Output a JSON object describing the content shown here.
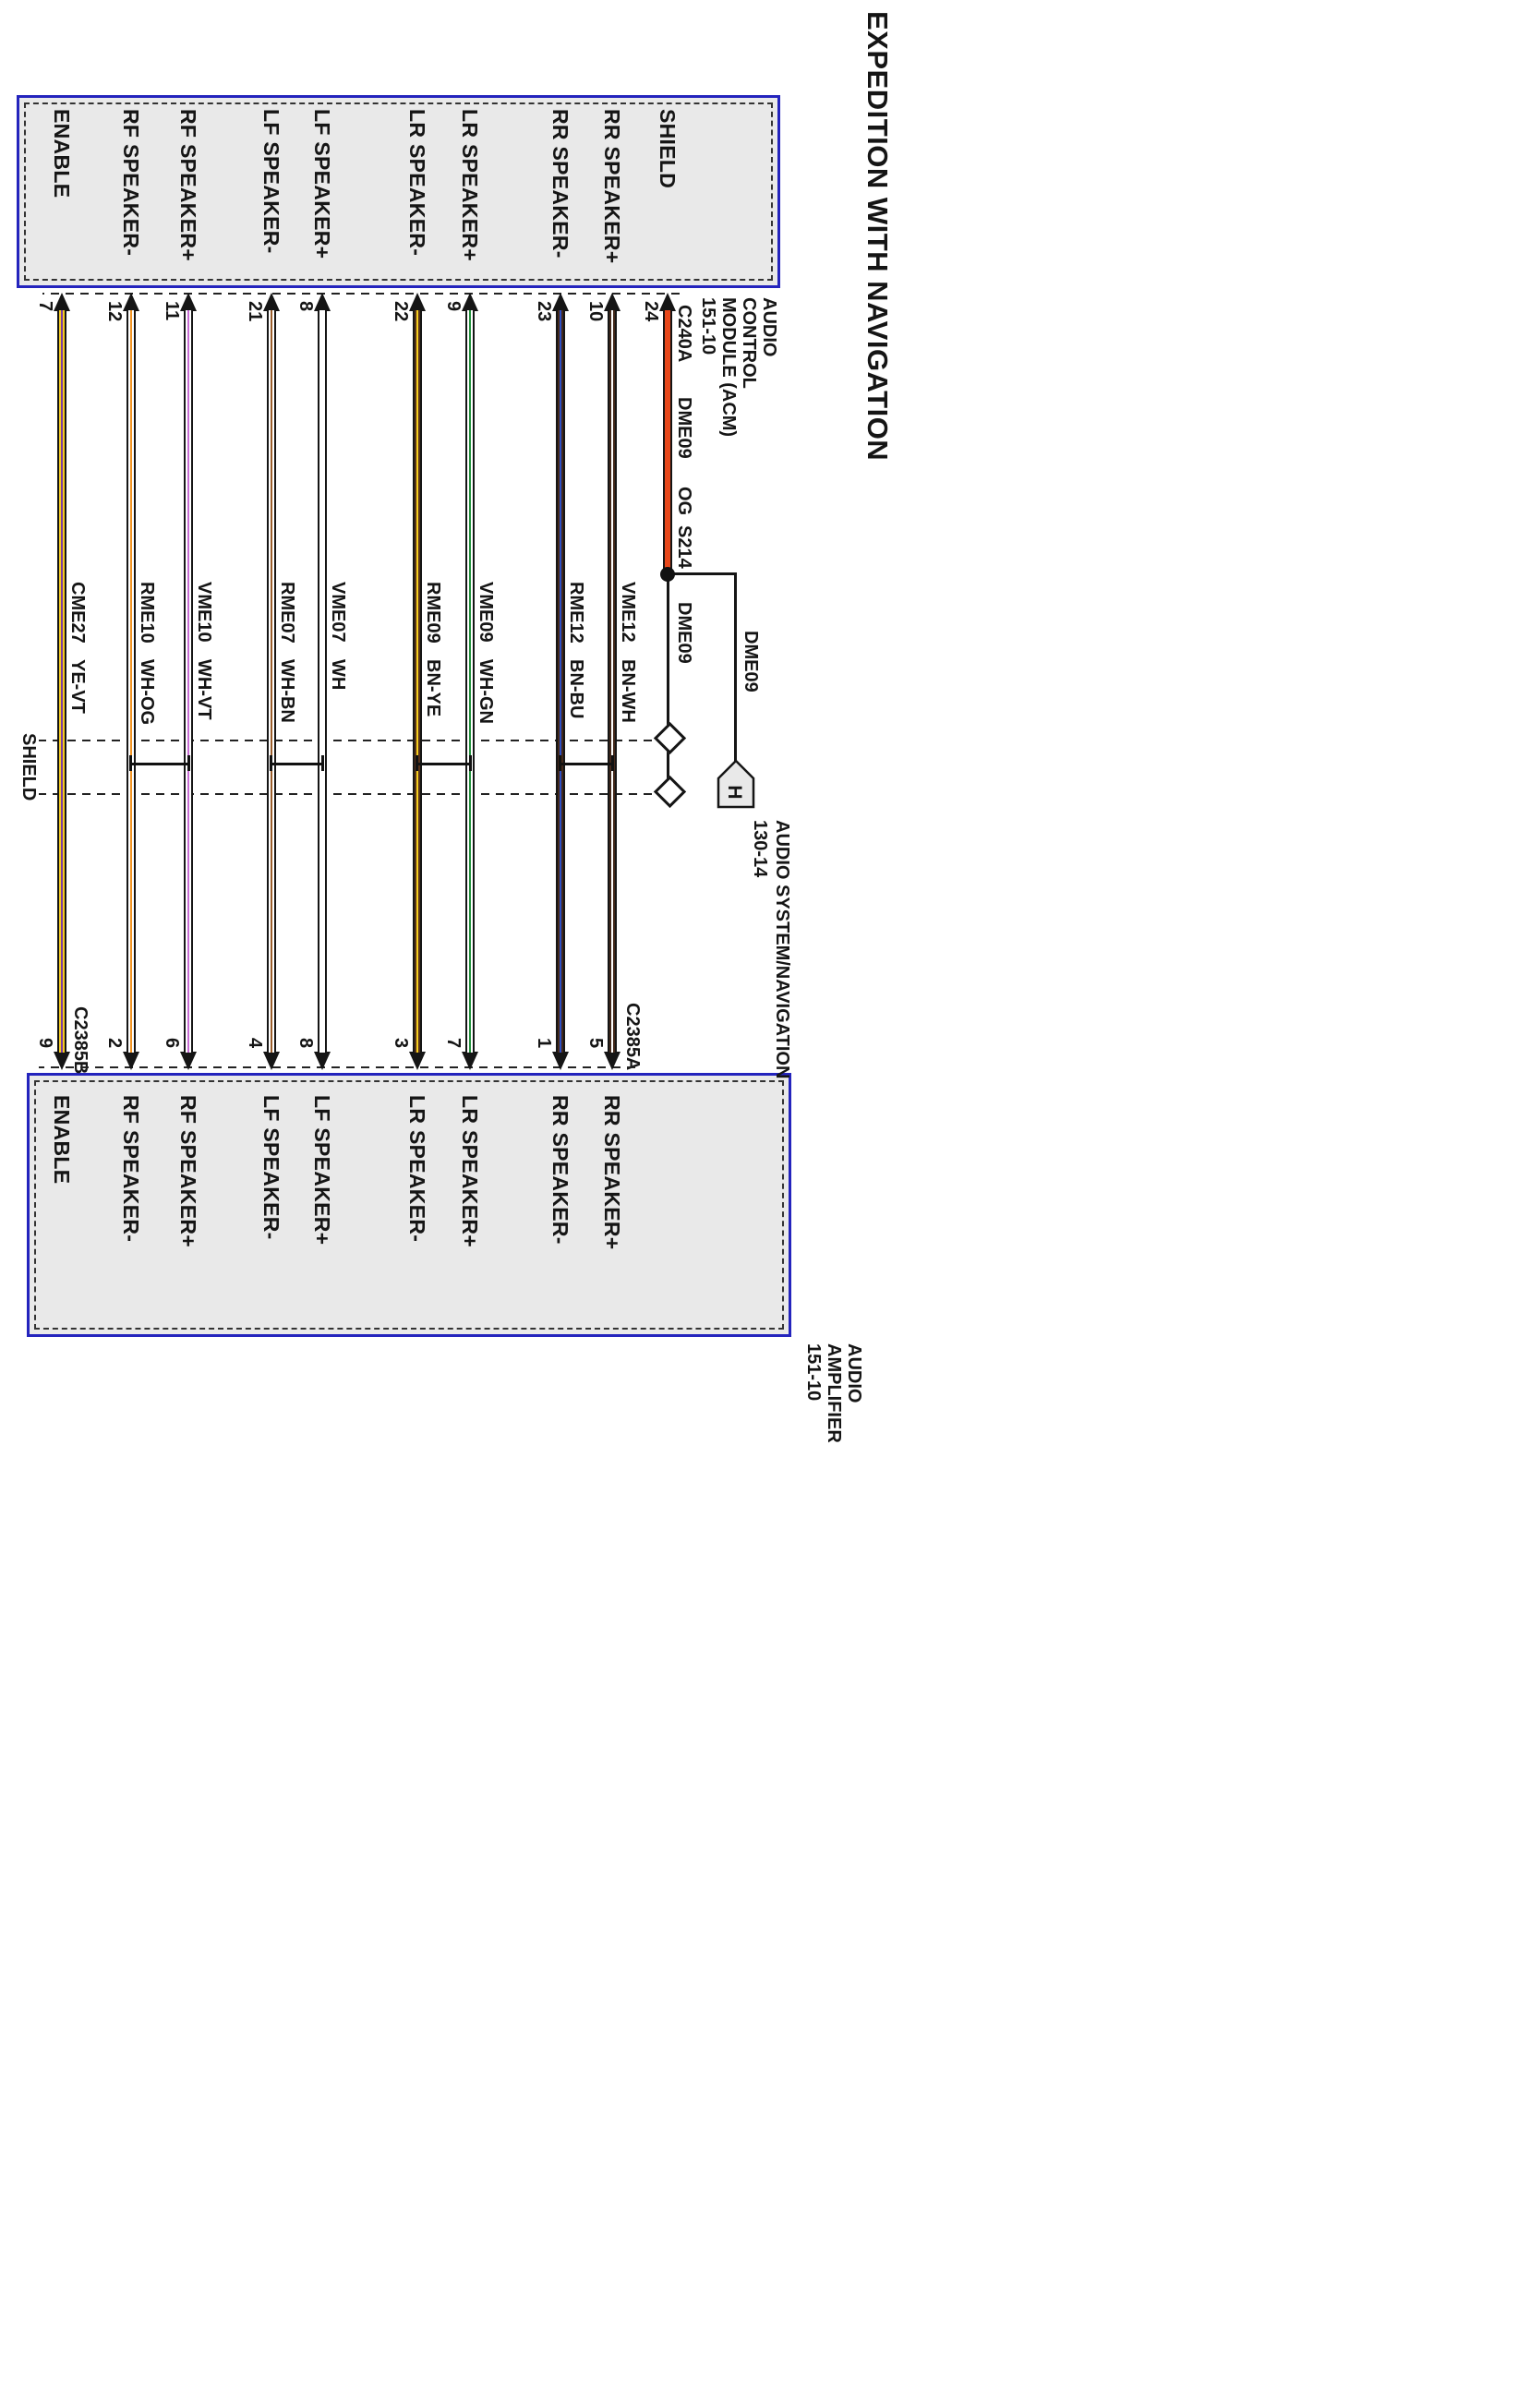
{
  "title": "EXPEDITION WITH NAVIGATION",
  "palette": {
    "box_border": "#2424bd",
    "box_fill": "#e9e9e9",
    "line": "#151515"
  },
  "acm": {
    "name_lines": [
      "AUDIO",
      "CONTROL",
      "MODULE (ACM)",
      "151-10"
    ],
    "connector": "C240A"
  },
  "amp": {
    "name_lines": [
      "AUDIO",
      "AMPLIFIER",
      "151-10"
    ],
    "connector_a": "C2385A",
    "connector_b": "C2385B"
  },
  "shield": {
    "acm_label": "SHIELD",
    "acm_pin": "24",
    "circuit": "DME09",
    "color_code": "OG",
    "splice": "S214",
    "post_splice_circuit": "DME09",
    "branch_circuit": "DME09",
    "region_label": "SHIELD",
    "wire_hex": "#e8481b"
  },
  "nav": {
    "tag_letter": "H",
    "line1": "AUDIO SYSTEM/NAVIGATION",
    "line2": "130-14"
  },
  "wires": [
    {
      "label": "RR SPEAKER+",
      "acm_pin": "10",
      "amp_pin": "5",
      "circuit": "VME12",
      "color_code": "BN-WH",
      "base_hex": "#44291a",
      "stripe_hex": "#ffffff"
    },
    {
      "label": "RR SPEAKER-",
      "acm_pin": "23",
      "amp_pin": "1",
      "circuit": "RME12",
      "color_code": "BN-BU",
      "base_hex": "#44291a",
      "stripe_hex": "#2d4fc4"
    },
    {
      "label": "LR SPEAKER+",
      "acm_pin": "9",
      "amp_pin": "7",
      "circuit": "VME09",
      "color_code": "WH-GN",
      "base_hex": "#ffffff",
      "stripe_hex": "#20913a"
    },
    {
      "label": "LR SPEAKER-",
      "acm_pin": "22",
      "amp_pin": "3",
      "circuit": "RME09",
      "color_code": "BN-YE",
      "base_hex": "#58331a",
      "stripe_hex": "#f8cf1e"
    },
    {
      "label": "LF SPEAKER+",
      "acm_pin": "8",
      "amp_pin": "8",
      "circuit": "VME07",
      "color_code": "WH",
      "base_hex": "#ffffff",
      "stripe_hex": "#ffffff"
    },
    {
      "label": "LF SPEAKER-",
      "acm_pin": "21",
      "amp_pin": "4",
      "circuit": "RME07",
      "color_code": "WH-BN",
      "base_hex": "#ffffff",
      "stripe_hex": "#9a5d2a"
    },
    {
      "label": "RF SPEAKER+",
      "acm_pin": "11",
      "amp_pin": "6",
      "circuit": "VME10",
      "color_code": "WH-VT",
      "base_hex": "#ffffff",
      "stripe_hex": "#c76bd4"
    },
    {
      "label": "RF SPEAKER-",
      "acm_pin": "12",
      "amp_pin": "2",
      "circuit": "RME10",
      "color_code": "WH-OG",
      "base_hex": "#ffffff",
      "stripe_hex": "#f29422"
    },
    {
      "label": "ENABLE",
      "acm_pin": "7",
      "amp_pin": "9",
      "circuit": "CME27",
      "color_code": "YE-VT",
      "base_hex": "#f7cd1e",
      "stripe_hex": "#7c3fa4"
    }
  ]
}
